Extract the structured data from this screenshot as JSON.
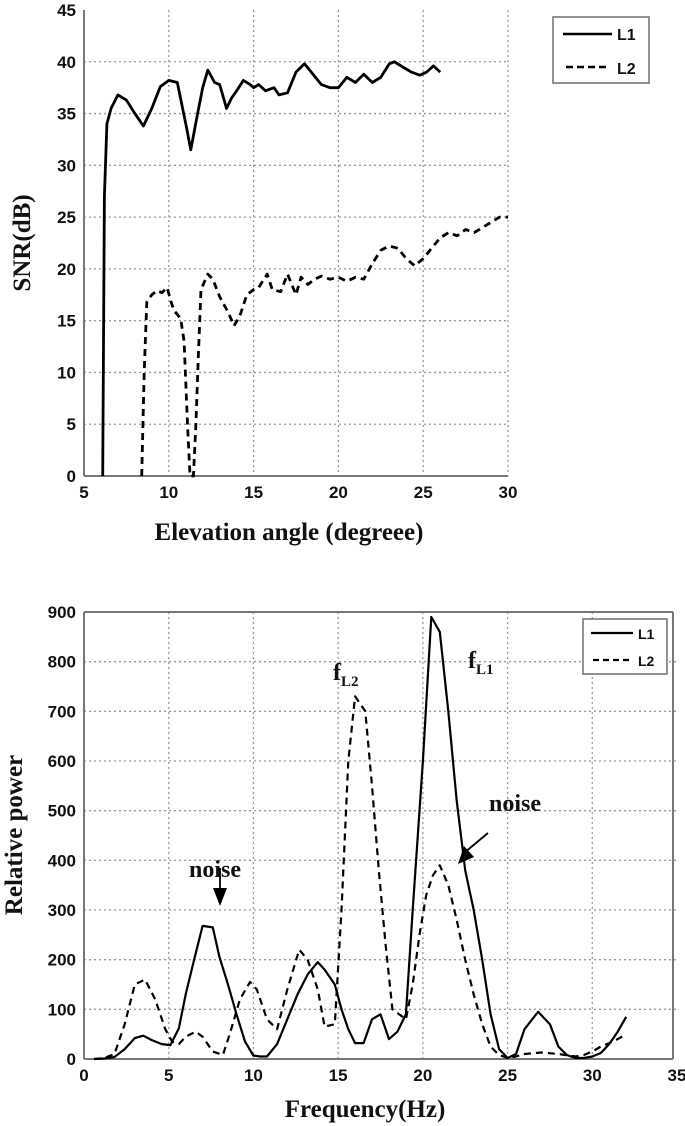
{
  "chart_data": [
    {
      "type": "line",
      "title": "",
      "xlabel": "Elevation angle (degreee)",
      "ylabel": "SNR(dB)",
      "xlim": [
        5,
        30
      ],
      "ylim": [
        0,
        45
      ],
      "xticks": [
        "5",
        "10",
        "15",
        "20",
        "25",
        "30"
      ],
      "yticks": [
        "0",
        "5",
        "10",
        "15",
        "20",
        "25",
        "30",
        "35",
        "40",
        "45"
      ],
      "grid": true,
      "legend": {
        "position": "upper right",
        "entries": [
          "L1",
          "L2"
        ]
      },
      "series": [
        {
          "name": "L1",
          "style": "solid",
          "x": [
            6.1,
            6.2,
            6.35,
            6.6,
            7.0,
            7.5,
            8.0,
            8.5,
            9.0,
            9.5,
            10.0,
            10.5,
            11.0,
            11.3,
            11.7,
            12.0,
            12.3,
            12.7,
            13.0,
            13.4,
            13.7,
            14.0,
            14.4,
            14.8,
            15.0,
            15.3,
            15.7,
            16.2,
            16.5,
            17.0,
            17.5,
            18.0,
            18.5,
            19.0,
            19.5,
            20.0,
            20.5,
            21.0,
            21.5,
            22.0,
            22.5,
            23.0,
            23.3,
            23.8,
            24.3,
            24.8,
            25.2,
            25.6,
            26.0
          ],
          "values": [
            0,
            27,
            34,
            35.5,
            36.8,
            36.3,
            35.0,
            33.8,
            35.5,
            37.6,
            38.2,
            38.0,
            34.0,
            31.5,
            35.0,
            37.5,
            39.2,
            38.0,
            37.8,
            35.5,
            36.5,
            37.2,
            38.2,
            37.8,
            37.5,
            37.8,
            37.2,
            37.5,
            36.8,
            37.0,
            39.0,
            39.8,
            38.8,
            37.8,
            37.5,
            37.5,
            38.5,
            38.0,
            38.8,
            38.0,
            38.5,
            39.8,
            40.0,
            39.5,
            39.0,
            38.7,
            39.0,
            39.6,
            39.0
          ]
        },
        {
          "name": "L2",
          "style": "dashed",
          "x": [
            8.4,
            8.55,
            8.7,
            9.0,
            9.3,
            9.6,
            9.9,
            10.1,
            10.3,
            10.7,
            10.9,
            11.1,
            11.25,
            11.45,
            11.6,
            11.75,
            11.9,
            12.3,
            12.6,
            13.0,
            13.5,
            13.85,
            14.2,
            14.6,
            15.0,
            15.3,
            15.8,
            16.1,
            16.6,
            17.0,
            17.5,
            17.8,
            18.2,
            18.6,
            19.0,
            19.5,
            20.0,
            20.5,
            21.0,
            21.5,
            22.0,
            22.5,
            23.0,
            23.5,
            24.0,
            24.5,
            25.0,
            25.5,
            26.0,
            26.5,
            27.0,
            27.5,
            28.0,
            28.5,
            29.0,
            29.5,
            30.0
          ],
          "values": [
            0,
            10,
            16.8,
            17.5,
            17.9,
            17.7,
            18.2,
            17.0,
            16.0,
            15.2,
            13.0,
            5.0,
            0,
            0,
            5.0,
            12.0,
            18.0,
            19.5,
            19.0,
            17.3,
            15.8,
            14.5,
            15.5,
            17.5,
            18.0,
            18.2,
            19.5,
            18.0,
            17.8,
            19.5,
            17.5,
            19.2,
            18.5,
            19.0,
            19.3,
            19.0,
            19.2,
            18.8,
            19.2,
            19.0,
            20.5,
            21.8,
            22.2,
            22.0,
            21.0,
            20.3,
            21.0,
            22.0,
            23.0,
            23.5,
            23.2,
            23.8,
            23.5,
            24.0,
            24.5,
            25.0,
            25.0
          ]
        }
      ]
    },
    {
      "type": "line",
      "title": "",
      "xlabel": "Frequency(Hz)",
      "ylabel": "Relative power",
      "xlim": [
        0,
        35
      ],
      "ylim": [
        0,
        900
      ],
      "xticks": [
        "0",
        "5",
        "10",
        "15",
        "20",
        "25",
        "30",
        "35"
      ],
      "yticks": [
        "0",
        "100",
        "200",
        "300",
        "400",
        "500",
        "600",
        "700",
        "800",
        "900"
      ],
      "grid": true,
      "legend": {
        "position": "upper right",
        "entries": [
          "L1",
          "L2"
        ]
      },
      "annotations": [
        {
          "text": "f",
          "subscript": "L2",
          "x": 15.8,
          "y": 750
        },
        {
          "text": "f",
          "subscript": "L1",
          "x": 22.7,
          "y": 790
        },
        {
          "text": "noise",
          "x": 8.0,
          "y": 395,
          "arrow_to": [
            8.0,
            270
          ]
        },
        {
          "text": "noise",
          "x": 23.0,
          "y": 495,
          "arrow_to": [
            21.5,
            380
          ]
        }
      ],
      "series": [
        {
          "name": "L1",
          "style": "solid",
          "x": [
            0.6,
            1.2,
            1.8,
            2.4,
            3.0,
            3.5,
            4.0,
            4.6,
            5.1,
            5.6,
            6.0,
            6.5,
            7.0,
            7.6,
            8.0,
            8.5,
            9.0,
            9.5,
            10.0,
            10.4,
            10.8,
            11.4,
            12.0,
            12.6,
            13.2,
            13.8,
            14.2,
            14.8,
            15.2,
            15.6,
            16.0,
            16.5,
            17.0,
            17.5,
            18.0,
            18.5,
            19.0,
            19.4,
            20.0,
            20.5,
            21.0,
            21.5,
            22.0,
            22.5,
            23.0,
            23.5,
            24.0,
            24.5,
            25.0,
            25.5,
            26.0,
            26.8,
            27.5,
            28.0,
            28.5,
            29.0,
            29.5,
            30.0,
            30.5,
            31.0,
            31.5,
            32.0
          ],
          "values": [
            0,
            1,
            4,
            20,
            42,
            47,
            38,
            30,
            28,
            62,
            130,
            200,
            268,
            265,
            205,
            150,
            90,
            35,
            7,
            5,
            5,
            30,
            80,
            130,
            170,
            195,
            180,
            150,
            100,
            60,
            32,
            32,
            80,
            90,
            40,
            55,
            90,
            300,
            600,
            890,
            860,
            700,
            520,
            380,
            300,
            200,
            90,
            20,
            2,
            10,
            60,
            95,
            70,
            25,
            8,
            2,
            2,
            5,
            12,
            30,
            55,
            85
          ]
        },
        {
          "name": "L2",
          "style": "dashed",
          "x": [
            0.6,
            1.2,
            1.8,
            2.4,
            3.0,
            3.6,
            4.2,
            4.8,
            5.2,
            5.6,
            6.0,
            6.6,
            7.0,
            7.6,
            8.2,
            8.6,
            9.2,
            9.8,
            10.2,
            10.8,
            11.4,
            12.0,
            12.7,
            13.2,
            13.8,
            14.2,
            14.8,
            15.2,
            15.6,
            16.0,
            16.6,
            17.0,
            17.4,
            17.8,
            18.2,
            18.6,
            19.0,
            19.4,
            19.8,
            20.2,
            20.6,
            21.0,
            21.5,
            22.0,
            22.5,
            23.0,
            23.5,
            24.0,
            24.5,
            25.0,
            25.5,
            26.0,
            27.0,
            28.0,
            29.0,
            29.5,
            30.0,
            30.5,
            31.0,
            31.5,
            32.0
          ],
          "values": [
            0,
            2,
            10,
            70,
            150,
            160,
            120,
            60,
            35,
            30,
            45,
            55,
            45,
            15,
            8,
            50,
            120,
            155,
            140,
            80,
            60,
            140,
            220,
            200,
            140,
            65,
            70,
            300,
            600,
            730,
            700,
            550,
            380,
            230,
            100,
            90,
            80,
            150,
            250,
            330,
            370,
            390,
            350,
            280,
            200,
            130,
            70,
            25,
            8,
            2,
            5,
            10,
            13,
            10,
            5,
            8,
            15,
            25,
            32,
            40,
            50
          ]
        }
      ]
    }
  ],
  "charts": {
    "top": {
      "ylabel": "SNR(dB)",
      "xlabel": "Elevation angle (degreee)",
      "yticks": [
        "0",
        "5",
        "10",
        "15",
        "20",
        "25",
        "30",
        "35",
        "40",
        "45"
      ],
      "xticks": [
        "5",
        "10",
        "15",
        "20",
        "25",
        "30"
      ],
      "legend": {
        "l1": "L1",
        "l2": "L2"
      }
    },
    "bottom": {
      "ylabel": "Relative power",
      "xlabel": "Frequency(Hz)",
      "yticks": [
        "0",
        "100",
        "200",
        "300",
        "400",
        "500",
        "600",
        "700",
        "800",
        "900"
      ],
      "xticks": [
        "0",
        "5",
        "10",
        "15",
        "20",
        "25",
        "30",
        "35"
      ],
      "legend": {
        "l1": "L1",
        "l2": "L2"
      },
      "annotations": {
        "f_main": "f",
        "fl2_sub": "L2",
        "fl1_sub": "L1",
        "noise_left": "noise",
        "noise_right": "noise"
      }
    }
  }
}
